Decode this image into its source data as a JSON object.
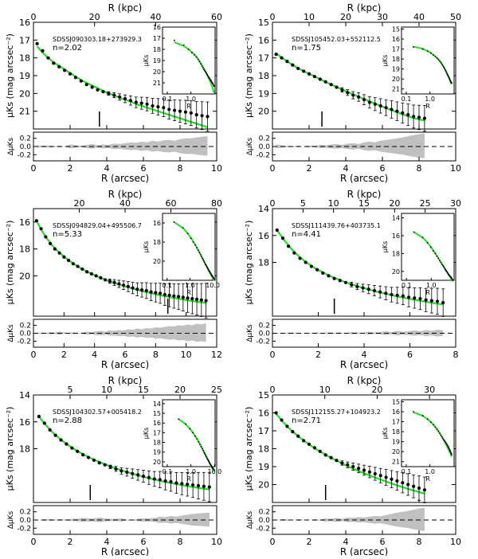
{
  "colors": {
    "model": "#22dd22",
    "residual": "#c0c0c0",
    "points": "#000000"
  },
  "chart_data": [
    {
      "type": "scatter",
      "galaxy": "SDSSJ090303.18+273929.3",
      "n_label": "n=2.02",
      "xlabel_bottom": "R (arcsec)",
      "xlabel_top": "R (kpc)",
      "ylabel": "μKs (mag arcsec⁻²)",
      "ylabel_resid": "ΔμKs",
      "xlim": [
        0,
        10
      ],
      "xticks": [
        0,
        2,
        4,
        6,
        8,
        10
      ],
      "xlim_kpc": [
        0,
        60
      ],
      "xticks_kpc": [
        0,
        20,
        40,
        60
      ],
      "ylim": [
        22,
        16
      ],
      "yticks": [
        16,
        17,
        18,
        19,
        20,
        21
      ],
      "resid_lim": [
        -0.35,
        0.35
      ],
      "resid_ticks": [
        0.2,
        0.0,
        -0.2
      ],
      "seeing_marker": 3.6,
      "x": [
        0.2,
        0.5,
        0.8,
        1.1,
        1.4,
        1.7,
        2.0,
        2.3,
        2.6,
        2.9,
        3.2,
        3.5,
        3.8,
        4.1,
        4.4,
        4.7,
        5.0,
        5.3,
        5.6,
        5.9,
        6.2,
        6.5,
        6.8,
        7.1,
        7.4,
        7.7,
        8.0,
        8.3,
        8.6,
        8.9,
        9.2,
        9.5
      ],
      "y": [
        17.2,
        17.6,
        18.0,
        18.3,
        18.5,
        18.7,
        18.9,
        19.1,
        19.3,
        19.5,
        19.65,
        19.8,
        19.9,
        20.0,
        20.1,
        20.2,
        20.3,
        20.4,
        20.5,
        20.55,
        20.6,
        20.7,
        20.75,
        20.8,
        20.9,
        20.95,
        21.0,
        21.05,
        21.1,
        21.2,
        21.25,
        21.3
      ],
      "model": [
        17.35,
        17.7,
        18.0,
        18.25,
        18.45,
        18.65,
        18.85,
        19.05,
        19.25,
        19.4,
        19.55,
        19.7,
        19.85,
        20.0,
        20.1,
        20.25,
        20.35,
        20.45,
        20.6,
        20.7,
        20.8,
        20.9,
        21.0,
        21.1,
        21.2,
        21.3,
        21.4,
        21.5,
        21.6,
        21.7,
        21.8,
        21.9
      ],
      "residual": [
        0.03,
        0.02,
        -0.03,
        0.01,
        0.02,
        0.0,
        0.05,
        0.03,
        0.02,
        0.04,
        0.06,
        0.03,
        0.05,
        0.04,
        0.07,
        0.06,
        0.08,
        0.1,
        0.09,
        0.12,
        0.1,
        0.14,
        0.12,
        0.15,
        0.16,
        0.14,
        0.18,
        0.2,
        0.2,
        0.22,
        0.24,
        0.25
      ],
      "inset": {
        "xlabel": "R",
        "ylabel": "μKs",
        "xticks": [
          "0.1",
          "1.0"
        ],
        "yticks": [
          16,
          17,
          18,
          19,
          20,
          21
        ],
        "ylim": [
          22,
          16
        ]
      }
    },
    {
      "type": "scatter",
      "galaxy": "SDSSJ105452.03+552112.5",
      "n_label": "n=1.75",
      "xlabel_bottom": "R (arcsec)",
      "xlabel_top": "R (kpc)",
      "ylabel": "μKs (mag arcsec⁻²)",
      "ylabel_resid": "ΔμKs",
      "xlim": [
        0,
        10
      ],
      "xticks": [
        0,
        2,
        4,
        6,
        8,
        10
      ],
      "xlim_kpc": [
        0,
        50
      ],
      "xticks_kpc": [
        0,
        10,
        20,
        30,
        40,
        50
      ],
      "ylim": [
        21,
        15
      ],
      "yticks": [
        15,
        16,
        17,
        18,
        19,
        20
      ],
      "resid_lim": [
        -0.35,
        0.35
      ],
      "resid_ticks": [
        0.2,
        0.0,
        -0.2
      ],
      "seeing_marker": 2.7,
      "x": [
        0.2,
        0.5,
        0.8,
        1.1,
        1.4,
        1.7,
        2.0,
        2.3,
        2.6,
        2.9,
        3.2,
        3.5,
        3.8,
        4.1,
        4.4,
        4.7,
        5.0,
        5.3,
        5.6,
        5.9,
        6.2,
        6.5,
        6.8,
        7.1,
        7.4,
        7.7,
        8.0,
        8.3
      ],
      "y": [
        16.8,
        17.0,
        17.2,
        17.4,
        17.6,
        17.75,
        17.9,
        18.05,
        18.2,
        18.35,
        18.5,
        18.65,
        18.8,
        18.95,
        19.1,
        19.2,
        19.35,
        19.5,
        19.6,
        19.7,
        19.8,
        19.9,
        20.0,
        20.1,
        20.2,
        20.3,
        20.35,
        20.4
      ],
      "model": [
        16.75,
        16.98,
        17.2,
        17.4,
        17.58,
        17.75,
        17.9,
        18.05,
        18.2,
        18.35,
        18.5,
        18.64,
        18.78,
        18.92,
        19.05,
        19.18,
        19.32,
        19.45,
        19.57,
        19.7,
        19.82,
        19.94,
        20.06,
        20.17,
        20.28,
        20.38,
        20.46,
        20.52
      ],
      "residual": [
        0.05,
        0.03,
        -0.02,
        0.01,
        0.02,
        0.0,
        0.03,
        0.02,
        0.04,
        0.03,
        0.05,
        0.06,
        0.04,
        0.07,
        0.08,
        0.06,
        0.1,
        0.12,
        0.1,
        0.14,
        0.16,
        0.18,
        0.2,
        0.22,
        0.25,
        0.28,
        0.3,
        0.32
      ],
      "inset": {
        "xlabel": "R",
        "ylabel": "μKs",
        "xticks": [
          "0.1",
          "1.0"
        ],
        "yticks": [
          15,
          16,
          17,
          18,
          19,
          20,
          21
        ],
        "ylim": [
          21.5,
          14.8
        ]
      }
    },
    {
      "type": "scatter",
      "galaxy": "SDSSJ094829.04+495506.7",
      "n_label": "n=5.33",
      "xlabel_bottom": "R (arcsec)",
      "xlabel_top": "R (kpc)",
      "ylabel": "μKs (mag arcsec⁻²)",
      "ylabel_resid": "ΔμKs",
      "xlim": [
        0,
        12
      ],
      "xticks": [
        0,
        2,
        4,
        6,
        8,
        10,
        12
      ],
      "xlim_kpc": [
        0,
        80
      ],
      "xticks_kpc": [
        20,
        40,
        60,
        80
      ],
      "ylim": [
        23,
        15
      ],
      "yticks": [
        16,
        18,
        20
      ],
      "resid_lim": [
        -0.35,
        0.35
      ],
      "resid_ticks": [
        0.2,
        0.0,
        -0.2
      ],
      "seeing_marker": 8.8,
      "x": [
        0.2,
        0.5,
        0.8,
        1.1,
        1.4,
        1.7,
        2.0,
        2.3,
        2.6,
        2.9,
        3.2,
        3.5,
        3.8,
        4.1,
        4.4,
        4.7,
        5.0,
        5.3,
        5.6,
        5.9,
        6.2,
        6.5,
        6.8,
        7.1,
        7.4,
        7.7,
        8.0,
        8.3,
        8.6,
        8.9,
        9.2,
        9.5,
        9.8,
        10.1,
        10.4,
        10.7,
        11.0,
        11.3
      ],
      "y": [
        15.9,
        16.5,
        17.1,
        17.6,
        18.0,
        18.3,
        18.6,
        18.85,
        19.1,
        19.3,
        19.5,
        19.7,
        19.85,
        20.0,
        20.15,
        20.3,
        20.4,
        20.5,
        20.6,
        20.7,
        20.8,
        20.9,
        21.0,
        21.05,
        21.1,
        21.2,
        21.25,
        21.3,
        21.4,
        21.45,
        21.5,
        21.55,
        21.6,
        21.65,
        21.7,
        21.75,
        21.8,
        21.85
      ],
      "model": [
        15.9,
        16.55,
        17.1,
        17.55,
        17.95,
        18.28,
        18.58,
        18.84,
        19.08,
        19.3,
        19.5,
        19.68,
        19.85,
        20.0,
        20.15,
        20.28,
        20.41,
        20.53,
        20.64,
        20.75,
        20.85,
        20.95,
        21.04,
        21.13,
        21.21,
        21.29,
        21.37,
        21.44,
        21.51,
        21.58,
        21.64,
        21.7,
        21.76,
        21.82,
        21.87,
        21.92,
        21.97,
        22.02
      ],
      "residual": [
        0.0,
        -0.02,
        0.01,
        0.03,
        0.02,
        0.04,
        0.02,
        0.01,
        0.03,
        0.0,
        0.02,
        0.04,
        0.03,
        0.05,
        0.06,
        0.04,
        0.07,
        0.06,
        0.08,
        0.07,
        0.1,
        0.09,
        0.12,
        0.1,
        0.13,
        0.12,
        0.15,
        0.14,
        0.16,
        0.18,
        0.17,
        0.2,
        0.19,
        0.22,
        0.2,
        0.24,
        0.22,
        0.25
      ],
      "inset": {
        "xlabel": "R",
        "ylabel": "μKs",
        "xticks": [
          "0.1",
          "1.0",
          "10.0"
        ],
        "yticks": [
          16,
          18,
          20
        ],
        "ylim": [
          22,
          15
        ]
      }
    },
    {
      "type": "scatter",
      "galaxy": "SDSSJ111439.76+403735.1",
      "n_label": "n=4.41",
      "xlabel_bottom": "R (arcsec)",
      "xlabel_top": "R (kpc)",
      "ylabel": "μKs (mag arcsec⁻²)",
      "ylabel_resid": "ΔμKs",
      "xlim": [
        0,
        8
      ],
      "xticks": [
        0,
        2,
        4,
        6,
        8
      ],
      "xlim_kpc": [
        0,
        30
      ],
      "xticks_kpc": [
        0,
        5,
        10,
        15,
        20,
        25,
        30
      ],
      "ylim": [
        22,
        14
      ],
      "yticks": [
        14,
        16,
        18
      ],
      "resid_lim": [
        -0.35,
        0.35
      ],
      "resid_ticks": [
        0.2,
        0.0,
        -0.2
      ],
      "seeing_marker": 2.7,
      "x": [
        0.2,
        0.45,
        0.7,
        0.95,
        1.2,
        1.45,
        1.7,
        1.95,
        2.2,
        2.45,
        2.7,
        2.95,
        3.2,
        3.45,
        3.7,
        3.95,
        4.2,
        4.45,
        4.7,
        4.95,
        5.2,
        5.45,
        5.7,
        5.95,
        6.2,
        6.45,
        6.7,
        6.95,
        7.2,
        7.45
      ],
      "y": [
        15.6,
        16.2,
        16.8,
        17.3,
        17.7,
        18.0,
        18.3,
        18.55,
        18.8,
        19.0,
        19.2,
        19.35,
        19.5,
        19.65,
        19.8,
        19.9,
        20.0,
        20.1,
        20.2,
        20.3,
        20.4,
        20.45,
        20.5,
        20.6,
        20.65,
        20.7,
        20.8,
        20.85,
        20.9,
        21.0
      ],
      "model": [
        15.6,
        16.2,
        16.75,
        17.22,
        17.62,
        17.96,
        18.26,
        18.52,
        18.75,
        18.96,
        19.15,
        19.32,
        19.48,
        19.63,
        19.77,
        19.9,
        20.02,
        20.13,
        20.24,
        20.34,
        20.44,
        20.53,
        20.62,
        20.7,
        20.78,
        20.86,
        20.93,
        21.0,
        21.07,
        21.13
      ],
      "residual": [
        0.01,
        0.0,
        -0.02,
        0.02,
        0.0,
        0.01,
        -0.01,
        0.02,
        0.0,
        0.03,
        0.01,
        0.02,
        0.0,
        0.03,
        0.02,
        0.01,
        0.04,
        0.02,
        0.03,
        0.05,
        0.03,
        0.06,
        0.04,
        0.05,
        0.07,
        0.05,
        0.08,
        0.06,
        0.09,
        0.07
      ],
      "inset": {
        "xlabel": "R",
        "ylabel": "μKs",
        "xticks": [
          "0.1",
          "1.0"
        ],
        "yticks": [
          14,
          16,
          18,
          20
        ],
        "ylim": [
          21,
          13.5
        ]
      }
    },
    {
      "type": "scatter",
      "galaxy": "SDSSJ104302.57+005418.2",
      "n_label": "n=2.88",
      "xlabel_bottom": "R (arcsec)",
      "xlabel_top": "R (kpc)",
      "ylabel": "μKs (mag arcsec⁻²)",
      "ylabel_resid": "ΔμKs",
      "xlim": [
        0,
        10
      ],
      "xticks": [
        0,
        2,
        4,
        6,
        8,
        10
      ],
      "xlim_kpc": [
        0,
        25
      ],
      "xticks_kpc": [
        5,
        10,
        15,
        20,
        25
      ],
      "ylim": [
        22,
        14
      ],
      "yticks": [
        14,
        16,
        18
      ],
      "resid_lim": [
        -0.35,
        0.35
      ],
      "resid_ticks": [
        0.2,
        0.0,
        -0.2
      ],
      "seeing_marker": 3.1,
      "x": [
        0.3,
        0.6,
        0.9,
        1.2,
        1.5,
        1.8,
        2.1,
        2.4,
        2.7,
        3.0,
        3.3,
        3.6,
        3.9,
        4.2,
        4.5,
        4.8,
        5.1,
        5.4,
        5.7,
        6.0,
        6.3,
        6.6,
        6.9,
        7.2,
        7.5,
        7.8,
        8.1,
        8.4,
        8.7,
        9.0,
        9.3,
        9.6
      ],
      "y": [
        15.6,
        16.1,
        16.6,
        17.0,
        17.35,
        17.65,
        17.95,
        18.2,
        18.45,
        18.65,
        18.85,
        19.05,
        19.2,
        19.35,
        19.5,
        19.65,
        19.75,
        19.85,
        19.95,
        20.05,
        20.15,
        20.25,
        20.3,
        20.4,
        20.45,
        20.55,
        20.6,
        20.65,
        20.7,
        20.75,
        20.8,
        20.85
      ],
      "model": [
        15.6,
        16.12,
        16.58,
        16.98,
        17.33,
        17.64,
        17.92,
        18.17,
        18.4,
        18.61,
        18.81,
        18.99,
        19.16,
        19.32,
        19.47,
        19.61,
        19.74,
        19.86,
        19.98,
        20.09,
        20.19,
        20.29,
        20.38,
        20.47,
        20.55,
        20.63,
        20.71,
        20.78,
        20.85,
        20.91,
        20.97,
        21.03
      ],
      "residual": [
        0.0,
        -0.02,
        0.02,
        0.01,
        0.02,
        0.01,
        0.03,
        0.03,
        0.05,
        0.04,
        0.04,
        0.06,
        0.04,
        0.03,
        0.03,
        0.04,
        0.01,
        -0.01,
        -0.03,
        -0.04,
        -0.04,
        -0.05,
        -0.08,
        -0.07,
        -0.1,
        -0.08,
        -0.11,
        -0.13,
        -0.15,
        -0.16,
        -0.17,
        -0.18
      ],
      "inset": {
        "xlabel": "R",
        "ylabel": "μKs",
        "xticks": [
          "0.1",
          "1.0",
          "10.0"
        ],
        "yticks": [
          14,
          15,
          16,
          17,
          18,
          19,
          20
        ],
        "ylim": [
          20.5,
          13.6
        ]
      }
    },
    {
      "type": "scatter",
      "galaxy": "SDSSJ112155.27+104923.2",
      "n_label": "n=2.71",
      "xlabel_bottom": "R (arcsec)",
      "xlabel_top": "R (kpc)",
      "ylabel": "μKs (mag arcsec⁻²)",
      "ylabel_resid": "ΔμKs",
      "xlim": [
        0,
        10
      ],
      "xticks": [
        0,
        2,
        4,
        6,
        8,
        10
      ],
      "xlim_kpc": [
        0,
        35
      ],
      "xticks_kpc": [
        0,
        10,
        20,
        30
      ],
      "ylim": [
        21,
        15
      ],
      "yticks": [
        15,
        16,
        17,
        18,
        19,
        20
      ],
      "resid_lim": [
        -0.35,
        0.35
      ],
      "resid_ticks": [
        0.2,
        0.0,
        -0.2
      ],
      "seeing_marker": 2.9,
      "x": [
        0.2,
        0.5,
        0.8,
        1.1,
        1.4,
        1.7,
        2.0,
        2.3,
        2.6,
        2.9,
        3.2,
        3.5,
        3.8,
        4.1,
        4.4,
        4.7,
        5.0,
        5.3,
        5.6,
        5.9,
        6.2,
        6.5,
        6.8,
        7.1,
        7.4,
        7.7,
        8.0,
        8.3
      ],
      "y": [
        16.0,
        16.4,
        16.75,
        17.05,
        17.3,
        17.55,
        17.75,
        17.95,
        18.15,
        18.35,
        18.5,
        18.65,
        18.8,
        18.9,
        19.0,
        19.1,
        19.2,
        19.3,
        19.4,
        19.5,
        19.6,
        19.7,
        19.8,
        19.9,
        20.0,
        20.1,
        20.2,
        20.3
      ],
      "model": [
        16.05,
        16.42,
        16.75,
        17.04,
        17.3,
        17.54,
        17.76,
        17.97,
        18.16,
        18.34,
        18.51,
        18.67,
        18.82,
        18.97,
        19.11,
        19.24,
        19.37,
        19.49,
        19.61,
        19.72,
        19.83,
        19.94,
        20.04,
        20.14,
        20.24,
        20.33,
        20.42,
        20.51
      ],
      "residual": [
        0.0,
        0.02,
        -0.02,
        0.0,
        0.02,
        0.01,
        0.0,
        -0.02,
        0.01,
        -0.04,
        -0.03,
        -0.05,
        -0.03,
        -0.06,
        -0.05,
        -0.07,
        -0.06,
        -0.08,
        -0.1,
        -0.09,
        -0.12,
        -0.15,
        -0.18,
        -0.2,
        -0.22,
        -0.25,
        -0.28,
        -0.3
      ],
      "inset": {
        "xlabel": "R",
        "ylabel": "μKs",
        "xticks": [
          "0.1",
          "1.0"
        ],
        "yticks": [
          15,
          16,
          17,
          18,
          19,
          20,
          21
        ],
        "ylim": [
          21.5,
          14.8
        ]
      }
    }
  ]
}
